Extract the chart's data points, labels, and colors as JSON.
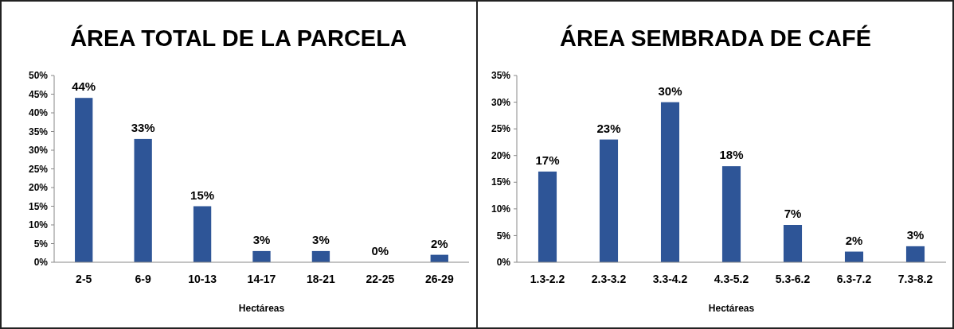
{
  "chart_data": [
    {
      "type": "bar",
      "title": "ÁREA TOTAL DE LA PARCELA",
      "xlabel": "Hectáreas",
      "categories": [
        "2-5",
        "6-9",
        "10-13",
        "14-17",
        "18-21",
        "22-25",
        "26-29"
      ],
      "values": [
        44,
        33,
        15,
        3,
        3,
        0,
        2
      ],
      "color": "#2e5597",
      "data_labels": true,
      "value_labels": [
        "44%",
        "33%",
        "15%",
        "3%",
        "3%",
        "0%",
        "2%"
      ],
      "ylim": [
        0,
        50
      ],
      "yticks": [
        {
          "value": 0,
          "label": "0%"
        },
        {
          "value": 5,
          "label": "5%"
        },
        {
          "value": 10,
          "label": "10%"
        },
        {
          "value": 15,
          "label": "15%"
        },
        {
          "value": 20,
          "label": "20%"
        },
        {
          "value": 25,
          "label": "25%"
        },
        {
          "value": 30,
          "label": "30%"
        },
        {
          "value": 35,
          "label": "35%"
        },
        {
          "value": 40,
          "label": "40%"
        },
        {
          "value": 45,
          "label": "45%"
        },
        {
          "value": 50,
          "label": "50%"
        }
      ],
      "grid": false
    },
    {
      "type": "bar",
      "title": "ÁREA SEMBRADA DE CAFÉ",
      "xlabel": "Hectáreas",
      "categories": [
        "1.3-2.2",
        "2.3-3.2",
        "3.3-4.2",
        "4.3-5.2",
        "5.3-6.2",
        "6.3-7.2",
        "7.3-8.2"
      ],
      "values": [
        17,
        23,
        30,
        18,
        7,
        2,
        3
      ],
      "color": "#2e5597",
      "data_labels": true,
      "value_labels": [
        "17%",
        "23%",
        "30%",
        "18%",
        "7%",
        "2%",
        "3%"
      ],
      "ylim": [
        0,
        35
      ],
      "yticks": [
        {
          "value": 0,
          "label": "0%"
        },
        {
          "value": 5,
          "label": "5%"
        },
        {
          "value": 10,
          "label": "10%"
        },
        {
          "value": 15,
          "label": "15%"
        },
        {
          "value": 20,
          "label": "20%"
        },
        {
          "value": 25,
          "label": "25%"
        },
        {
          "value": 30,
          "label": "30%"
        },
        {
          "value": 35,
          "label": "35%"
        }
      ],
      "grid": false
    }
  ]
}
